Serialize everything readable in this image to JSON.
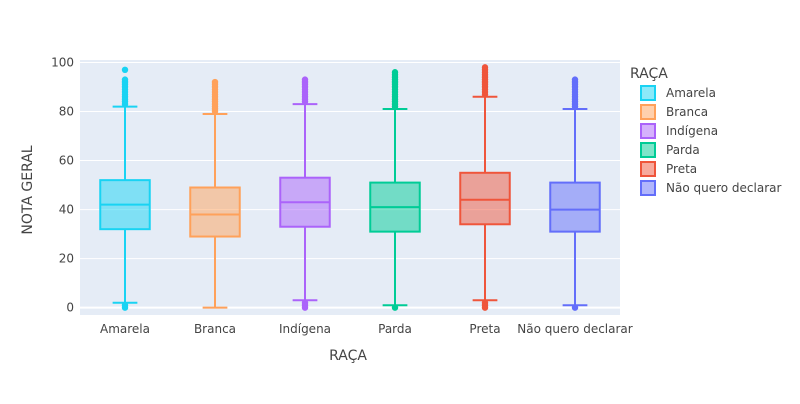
{
  "chart_data": {
    "type": "box",
    "xlabel": "RAÇA",
    "ylabel": "NOTA GERAL",
    "ylim": [
      -3,
      101
    ],
    "yticks": [
      0,
      20,
      40,
      60,
      80,
      100
    ],
    "grid": true,
    "legend": {
      "title": "RAÇA",
      "placement": "right"
    },
    "categories": [
      "Amarela",
      "Branca",
      "Indígena",
      "Parda",
      "Preta",
      "Não quero declarar"
    ],
    "series": [
      {
        "name": "Amarela",
        "color": "#19d3f3",
        "q1": 32,
        "median": 42,
        "q3": 52,
        "lower_fence": 2,
        "upper_fence": 82,
        "outliers_high": [
          83,
          84,
          85,
          86,
          87,
          88,
          89,
          90,
          91,
          92,
          93,
          97
        ],
        "outliers_low": [
          0,
          1
        ]
      },
      {
        "name": "Branca",
        "color": "#ffa15a",
        "q1": 29,
        "median": 38,
        "q3": 49,
        "lower_fence": 0,
        "upper_fence": 79,
        "outliers_high": [
          80,
          81,
          82,
          83,
          84,
          85,
          86,
          87,
          88,
          89,
          90,
          91,
          92
        ],
        "outliers_low": []
      },
      {
        "name": "Indígena",
        "color": "#ab63fa",
        "q1": 33,
        "median": 43,
        "q3": 53,
        "lower_fence": 3,
        "upper_fence": 83,
        "outliers_high": [
          84,
          85,
          86,
          87,
          88,
          89,
          90,
          91,
          92,
          93
        ],
        "outliers_low": [
          0,
          1,
          2
        ]
      },
      {
        "name": "Parda",
        "color": "#00cc96",
        "q1": 31,
        "median": 41,
        "q3": 51,
        "lower_fence": 1,
        "upper_fence": 81,
        "outliers_high": [
          82,
          83,
          84,
          85,
          86,
          87,
          88,
          89,
          90,
          91,
          92,
          93,
          94,
          95,
          96
        ],
        "outliers_low": [
          0
        ]
      },
      {
        "name": "Preta",
        "color": "#ef553b",
        "q1": 34,
        "median": 44,
        "q3": 55,
        "lower_fence": 3,
        "upper_fence": 86,
        "outliers_high": [
          87,
          88,
          89,
          90,
          91,
          92,
          93,
          94,
          95,
          96,
          97,
          98
        ],
        "outliers_low": [
          0,
          1,
          2
        ]
      },
      {
        "name": "Não quero declarar",
        "color": "#636efa",
        "q1": 31,
        "median": 40,
        "q3": 51,
        "lower_fence": 1,
        "upper_fence": 81,
        "outliers_high": [
          82,
          83,
          84,
          85,
          86,
          87,
          88,
          89,
          90,
          91,
          92,
          93
        ],
        "outliers_low": [
          0
        ]
      }
    ]
  }
}
